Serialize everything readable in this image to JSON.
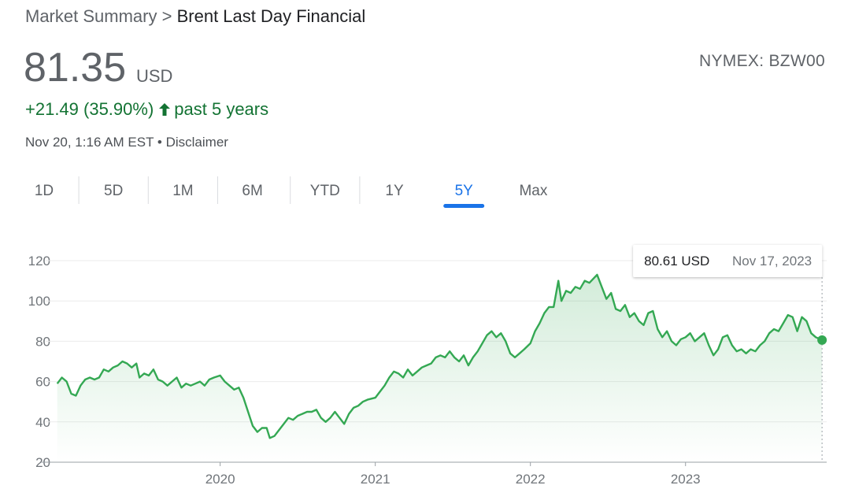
{
  "header": {
    "breadcrumb": [
      "Market Summary",
      ">",
      "Brent Last Day Financial"
    ],
    "price": "81.35",
    "currency": "USD",
    "change": "+21.49 (35.90%)",
    "period": "past 5 years",
    "timestamp": "Nov 20, 1:16 AM EST",
    "separator": "•",
    "disclaimer": "Disclaimer",
    "exchange": "NYMEX: BZW00"
  },
  "tabs": [
    "1D",
    "5D",
    "1M",
    "6M",
    "YTD",
    "1Y",
    "5Y",
    "Max"
  ],
  "selected_tab": 6,
  "chart_data": {
    "type": "line",
    "xlim": [
      2018.86,
      2023.92
    ],
    "xticks": [
      2020,
      2021,
      2022,
      2023
    ],
    "ylim": [
      20,
      120
    ],
    "yticks": [
      20,
      40,
      60,
      80,
      100,
      120
    ],
    "grid": true,
    "x": [
      2018.95,
      2018.98,
      2019.01,
      2019.04,
      2019.07,
      2019.1,
      2019.13,
      2019.16,
      2019.19,
      2019.22,
      2019.25,
      2019.28,
      2019.31,
      2019.34,
      2019.37,
      2019.4,
      2019.43,
      2019.46,
      2019.48,
      2019.51,
      2019.54,
      2019.57,
      2019.6,
      2019.63,
      2019.66,
      2019.69,
      2019.72,
      2019.75,
      2019.78,
      2019.81,
      2019.84,
      2019.87,
      2019.9,
      2019.93,
      2019.96,
      2020.0,
      2020.03,
      2020.06,
      2020.09,
      2020.12,
      2020.15,
      2020.18,
      2020.21,
      2020.24,
      2020.27,
      2020.3,
      2020.32,
      2020.35,
      2020.38,
      2020.41,
      2020.44,
      2020.47,
      2020.5,
      2020.53,
      2020.56,
      2020.59,
      2020.62,
      2020.65,
      2020.68,
      2020.71,
      2020.74,
      2020.77,
      2020.8,
      2020.83,
      2020.86,
      2020.89,
      2020.92,
      2020.95,
      2021.0,
      2021.03,
      2021.06,
      2021.09,
      2021.12,
      2021.15,
      2021.18,
      2021.21,
      2021.24,
      2021.27,
      2021.3,
      2021.33,
      2021.36,
      2021.39,
      2021.42,
      2021.45,
      2021.48,
      2021.51,
      2021.54,
      2021.57,
      2021.6,
      2021.63,
      2021.66,
      2021.69,
      2021.72,
      2021.75,
      2021.78,
      2021.81,
      2021.84,
      2021.87,
      2021.9,
      2021.93,
      2021.96,
      2022.0,
      2022.03,
      2022.06,
      2022.09,
      2022.12,
      2022.15,
      2022.18,
      2022.2,
      2022.23,
      2022.26,
      2022.29,
      2022.32,
      2022.35,
      2022.38,
      2022.43,
      2022.46,
      2022.49,
      2022.52,
      2022.55,
      2022.58,
      2022.61,
      2022.64,
      2022.67,
      2022.7,
      2022.73,
      2022.76,
      2022.79,
      2022.82,
      2022.85,
      2022.88,
      2022.91,
      2022.94,
      2022.97,
      2023.0,
      2023.03,
      2023.06,
      2023.09,
      2023.12,
      2023.15,
      2023.18,
      2023.21,
      2023.24,
      2023.27,
      2023.3,
      2023.33,
      2023.36,
      2023.39,
      2023.42,
      2023.45,
      2023.48,
      2023.51,
      2023.54,
      2023.57,
      2023.6,
      2023.63,
      2023.66,
      2023.69,
      2023.72,
      2023.75,
      2023.78,
      2023.81,
      2023.84,
      2023.88
    ],
    "series": [
      {
        "color": "#34a853",
        "values": [
          59,
          62,
          60,
          54,
          53,
          58,
          61,
          62,
          61,
          62,
          66,
          65,
          67,
          68,
          70,
          69,
          67,
          69,
          62,
          64,
          63,
          66,
          61,
          60,
          58,
          60,
          62,
          57,
          59,
          58,
          59,
          60,
          58,
          61,
          62,
          63,
          60,
          58,
          56,
          57,
          52,
          45,
          38,
          35,
          37,
          37,
          32,
          33,
          36,
          39,
          42,
          41,
          43,
          44,
          45,
          45,
          46,
          42,
          40,
          42,
          45,
          42,
          39,
          44,
          47,
          48,
          50,
          51,
          52,
          55,
          58,
          62,
          65,
          64,
          62,
          66,
          63,
          65,
          67,
          68,
          69,
          72,
          73,
          72,
          75,
          72,
          70,
          73,
          68,
          72,
          75,
          79,
          83,
          85,
          82,
          84,
          80,
          74,
          72,
          74,
          76,
          79,
          85,
          89,
          94,
          97,
          97,
          110,
          100,
          105,
          104,
          107,
          106,
          110,
          109,
          113,
          107,
          101,
          104,
          96,
          95,
          98,
          92,
          94,
          90,
          88,
          94,
          95,
          86,
          82,
          85,
          80,
          78,
          81,
          82,
          84,
          80,
          82,
          84,
          78,
          73,
          76,
          82,
          83,
          78,
          75,
          76,
          74,
          76,
          75,
          78,
          80,
          84,
          86,
          85,
          89,
          93,
          92,
          85,
          92,
          90,
          84,
          82,
          80.61
        ]
      }
    ],
    "annotation": {
      "text": "80.61 USD",
      "date": "Nov 17, 2023"
    }
  }
}
